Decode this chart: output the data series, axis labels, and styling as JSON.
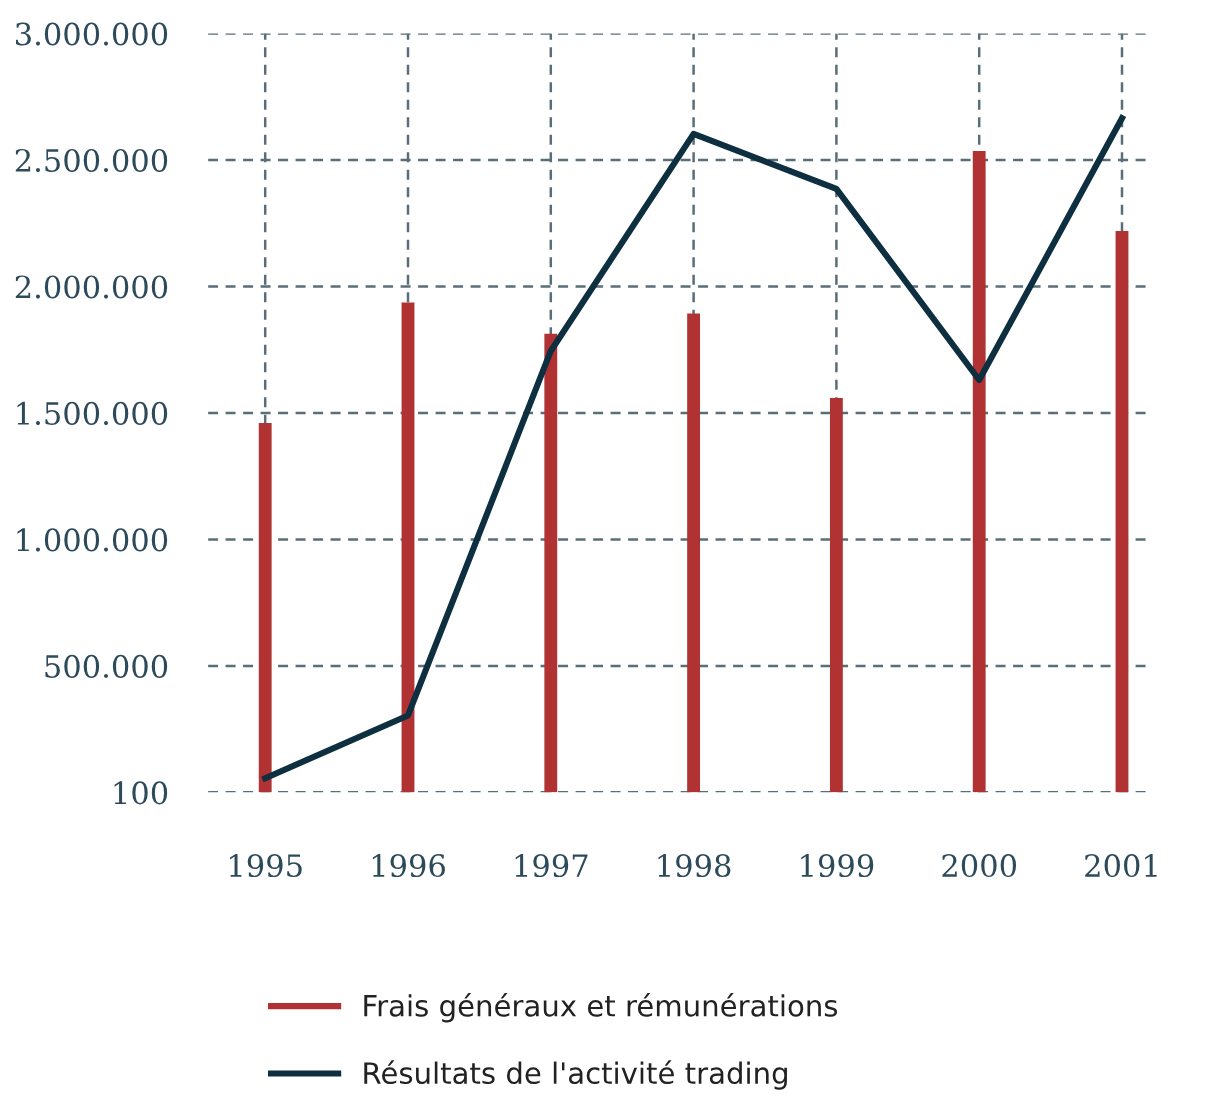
{
  "chart_data": {
    "type": "bar",
    "categories": [
      "1995",
      "1996",
      "1997",
      "1998",
      "1999",
      "2000",
      "2001"
    ],
    "series": [
      {
        "name": "Frais généraux et rémunérations",
        "color": "#b03232",
        "values": [
          1460000,
          1937000,
          1813000,
          1893000,
          1559000,
          2535000,
          2219000
        ]
      },
      {
        "name": "Résultats de l'activité trading",
        "type": "line",
        "color": "#0d2f3f",
        "values": [
          56000,
          304000,
          1745000,
          2603000,
          2386000,
          1630000,
          2665000
        ]
      }
    ],
    "ylim": [
      100,
      3000000
    ],
    "yticks": [
      100,
      {
        "value": 500000,
        "label": "500.000"
      },
      {
        "value": 1000000,
        "label": "1.000.000"
      },
      {
        "value": 1500000,
        "label": "1.500.000"
      },
      {
        "value": 2000000,
        "label": "2.000.000"
      },
      {
        "value": 2500000,
        "label": "2.500.000"
      },
      {
        "value": 3000000,
        "label": "3.000.000"
      }
    ],
    "grid": true,
    "legend": "bottom"
  }
}
